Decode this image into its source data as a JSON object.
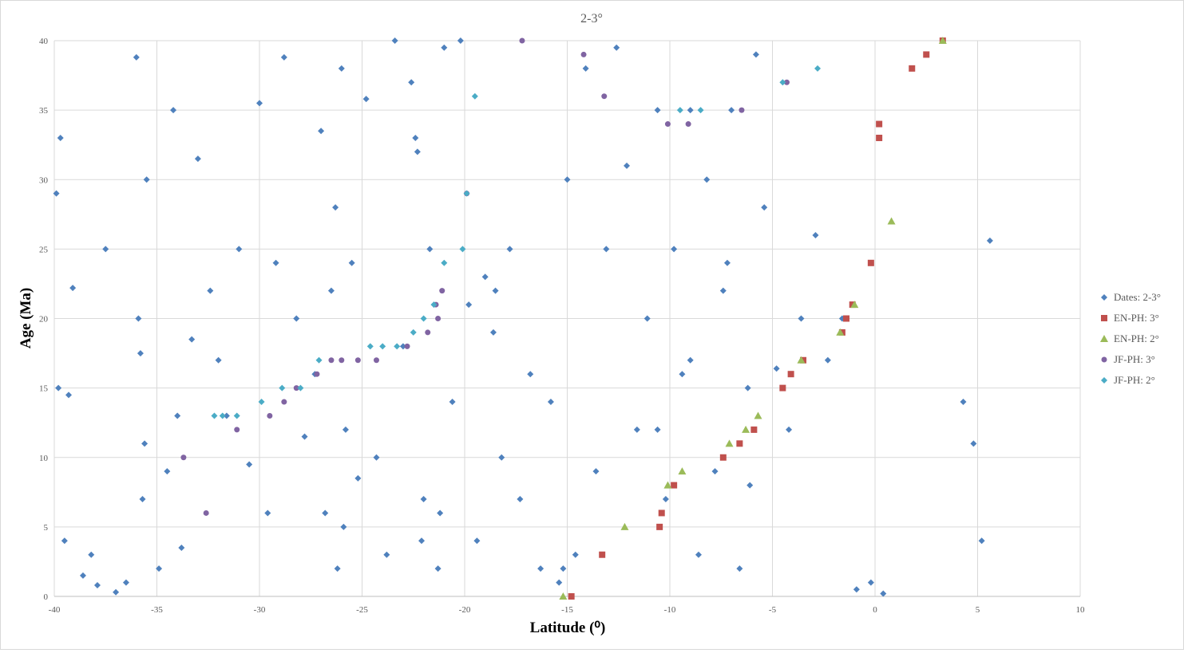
{
  "chart_data": {
    "type": "scatter",
    "title": "2-3°",
    "xlabel": "Latitude (⁰)",
    "ylabel": "Age (Ma)",
    "xlim": [
      -40,
      10
    ],
    "ylim": [
      0,
      40
    ],
    "x_ticks": [
      -40,
      -35,
      -30,
      -25,
      -20,
      -15,
      -10,
      -5,
      0,
      5,
      10
    ],
    "y_ticks": [
      0,
      5,
      10,
      15,
      20,
      25,
      30,
      35,
      40
    ],
    "grid": true,
    "legend_position": "right",
    "series": [
      {
        "name": "Dates: 2-3°",
        "marker": "diamond",
        "color": "#4f81bd",
        "x": [
          -39.9,
          -39.8,
          -39.7,
          -39.5,
          -39.3,
          -39.1,
          -38.6,
          -38.2,
          -37.9,
          -37.5,
          -37.0,
          -36.5,
          -36.0,
          -35.9,
          -35.7,
          -35.5,
          -34.9,
          -34.5,
          -34.2,
          -34.0,
          -33.8,
          -33.3,
          -33.0,
          -32.4,
          -32.0,
          -31.6,
          -31.0,
          -30.5,
          -30.0,
          -29.6,
          -29.2,
          -28.8,
          -28.2,
          -27.8,
          -27.3,
          -27.0,
          -26.8,
          -26.5,
          -26.2,
          -26.0,
          -25.8,
          -25.5,
          -25.2,
          -24.8,
          -24.3,
          -23.8,
          -23.4,
          -23.0,
          -22.6,
          -22.3,
          -22.0,
          -21.7,
          -21.3,
          -21.0,
          -20.6,
          -20.2,
          -19.8,
          -19.4,
          -19.0,
          -18.6,
          -18.2,
          -17.8,
          -17.3,
          -16.8,
          -16.3,
          -15.8,
          -15.4,
          -15.0,
          -14.6,
          -14.1,
          -13.6,
          -13.1,
          -12.6,
          -12.1,
          -11.6,
          -11.1,
          -10.6,
          -10.2,
          -9.8,
          -9.4,
          -9.0,
          -8.6,
          -8.2,
          -7.8,
          -7.4,
          -7.0,
          -6.6,
          -6.2,
          -5.8,
          -5.4,
          -4.8,
          -4.2,
          -3.6,
          -2.9,
          -2.3,
          -1.6,
          -0.9,
          -0.2,
          0.4,
          4.3,
          4.8,
          5.2,
          5.6,
          -35.8,
          -35.6,
          -26.3,
          -25.9,
          -22.4,
          -22.1,
          -21.2,
          -18.5,
          -15.2,
          -10.6,
          -9.0,
          -7.2,
          -6.1
        ],
        "y": [
          29.0,
          15.0,
          33.0,
          4.0,
          14.5,
          22.2,
          1.5,
          3.0,
          0.8,
          25.0,
          0.3,
          1.0,
          38.8,
          20.0,
          7.0,
          30.0,
          2.0,
          9.0,
          35.0,
          13.0,
          3.5,
          18.5,
          31.5,
          22.0,
          17.0,
          13.0,
          25.0,
          9.5,
          35.5,
          6.0,
          24.0,
          38.8,
          20.0,
          11.5,
          16.0,
          33.5,
          6.0,
          22.0,
          2.0,
          38.0,
          12.0,
          24.0,
          8.5,
          35.8,
          10.0,
          3.0,
          40.0,
          18.0,
          37.0,
          32.0,
          7.0,
          25.0,
          2.0,
          39.5,
          14.0,
          40.0,
          21.0,
          4.0,
          23.0,
          19.0,
          10.0,
          25.0,
          7.0,
          16.0,
          2.0,
          14.0,
          1.0,
          30.0,
          3.0,
          38.0,
          9.0,
          25.0,
          39.5,
          31.0,
          12.0,
          20.0,
          35.0,
          7.0,
          25.0,
          16.0,
          35.0,
          3.0,
          30.0,
          9.0,
          22.0,
          35.0,
          2.0,
          15.0,
          39.0,
          28.0,
          16.4,
          12.0,
          20.0,
          26.0,
          17.0,
          20.0,
          0.5,
          1.0,
          0.2,
          14.0,
          11.0,
          4.0,
          25.6,
          17.5,
          11.0,
          28.0,
          5.0,
          33.0,
          4.0,
          6.0,
          22.0,
          2.0,
          12.0,
          17.0,
          24.0,
          8.0
        ]
      },
      {
        "name": "EN-PH: 3°",
        "marker": "square",
        "color": "#c0504d",
        "x": [
          -14.8,
          -13.3,
          -10.5,
          -10.4,
          -9.8,
          -7.4,
          -6.6,
          -5.9,
          -4.5,
          -4.1,
          -3.5,
          -1.6,
          -1.4,
          -1.1,
          -0.2,
          0.2,
          0.2,
          1.8,
          2.5,
          3.3
        ],
        "y": [
          0.0,
          3.0,
          5.0,
          6.0,
          8.0,
          10.0,
          11.0,
          12.0,
          15.0,
          16.0,
          17.0,
          19.0,
          20.0,
          21.0,
          24.0,
          33.0,
          34.0,
          38.0,
          39.0,
          40.0
        ]
      },
      {
        "name": "EN-PH: 2°",
        "marker": "triangle",
        "color": "#9bbb59",
        "x": [
          -15.2,
          -12.2,
          -10.1,
          -9.4,
          -7.1,
          -6.3,
          -5.7,
          -3.6,
          -1.7,
          -1.0,
          0.8,
          3.3
        ],
        "y": [
          0.0,
          5.0,
          8.0,
          9.0,
          11.0,
          12.0,
          13.0,
          17.0,
          19.0,
          21.0,
          27.0,
          40.0
        ]
      },
      {
        "name": "JF-PH: 3°",
        "marker": "circle",
        "color": "#8064a2",
        "x": [
          -33.7,
          -32.6,
          -31.1,
          -29.5,
          -28.8,
          -27.2,
          -26.0,
          -24.3,
          -22.8,
          -21.8,
          -21.3,
          -21.1,
          -19.9,
          -17.2,
          -14.2,
          -13.2,
          -10.1,
          -9.1,
          -6.5,
          -4.3
        ],
        "y": [
          10.0,
          6.0,
          12.0,
          13.0,
          14.0,
          16.0,
          17.0,
          17.0,
          18.0,
          19.0,
          20.0,
          22.0,
          29.0,
          40.0,
          39.0,
          36.0,
          34.0,
          34.0,
          35.0,
          37.0
        ],
        "extra": {
          "x": [
            -21.4,
            -26.5,
            -25.2,
            -28.2
          ],
          "y": [
            21.0,
            17.0,
            17.0,
            15.0
          ]
        }
      },
      {
        "name": "JF-PH: 2°",
        "marker": "diamond",
        "color": "#4bacc6",
        "x": [
          -32.2,
          -31.8,
          -31.1,
          -29.9,
          -28.9,
          -28.0,
          -27.1,
          -24.6,
          -24.0,
          -23.3,
          -22.5,
          -22.0,
          -21.5,
          -21.0,
          -20.1,
          -19.9,
          -19.5,
          -9.5,
          -8.5,
          -4.5,
          -2.8
        ],
        "y": [
          13.0,
          13.0,
          13.0,
          14.0,
          15.0,
          15.0,
          17.0,
          18.0,
          18.0,
          18.0,
          19.0,
          20.0,
          21.0,
          24.0,
          25.0,
          29.0,
          36.0,
          35.0,
          35.0,
          37.0,
          38.0
        ]
      }
    ]
  }
}
